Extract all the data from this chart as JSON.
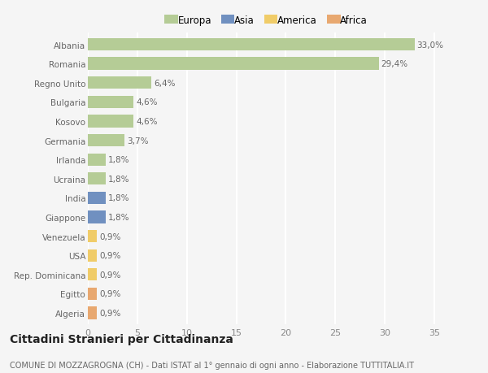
{
  "countries": [
    "Albania",
    "Romania",
    "Regno Unito",
    "Bulgaria",
    "Kosovo",
    "Germania",
    "Irlanda",
    "Ucraina",
    "India",
    "Giappone",
    "Venezuela",
    "USA",
    "Rep. Dominicana",
    "Egitto",
    "Algeria"
  ],
  "values": [
    33.0,
    29.4,
    6.4,
    4.6,
    4.6,
    3.7,
    1.8,
    1.8,
    1.8,
    1.8,
    0.9,
    0.9,
    0.9,
    0.9,
    0.9
  ],
  "labels": [
    "33,0%",
    "29,4%",
    "6,4%",
    "4,6%",
    "4,6%",
    "3,7%",
    "1,8%",
    "1,8%",
    "1,8%",
    "1,8%",
    "0,9%",
    "0,9%",
    "0,9%",
    "0,9%",
    "0,9%"
  ],
  "continents": [
    "Europa",
    "Europa",
    "Europa",
    "Europa",
    "Europa",
    "Europa",
    "Europa",
    "Europa",
    "Asia",
    "Asia",
    "America",
    "America",
    "America",
    "Africa",
    "Africa"
  ],
  "colors": {
    "Europa": "#b5cc96",
    "Asia": "#7090c0",
    "America": "#f0cc68",
    "Africa": "#e8a870"
  },
  "xlim": [
    0,
    36
  ],
  "xticks": [
    0,
    5,
    10,
    15,
    20,
    25,
    30,
    35
  ],
  "background_color": "#f5f5f5",
  "plot_bg_color": "#f5f5f5",
  "title": "Cittadini Stranieri per Cittadinanza",
  "subtitle": "COMUNE DI MOZZAGROGNA (CH) - Dati ISTAT al 1° gennaio di ogni anno - Elaborazione TUTTITALIA.IT",
  "bar_height": 0.65,
  "label_fontsize": 7.5,
  "ytick_fontsize": 7.5,
  "xtick_fontsize": 8,
  "legend_fontsize": 8.5,
  "title_fontsize": 10,
  "subtitle_fontsize": 7
}
